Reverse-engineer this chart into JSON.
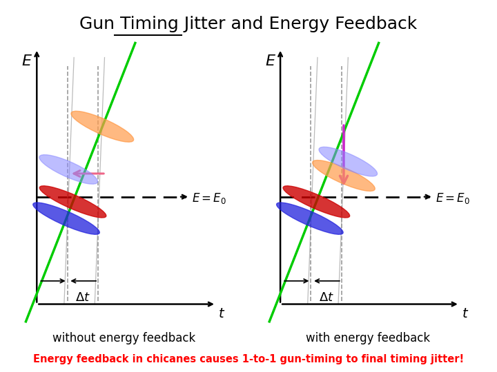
{
  "bg_color": "#ffffff",
  "left_label": "without energy feedback",
  "right_label": "with energy feedback",
  "bottom_text": "Energy feedback in chicanes causes 1-to-1 gun-timing to final timing jitter!",
  "bottom_text_color": "#ff0000",
  "green_color": "#00cc00",
  "blue_color": "#2222dd",
  "light_blue_color": "#8888ff",
  "red_color": "#cc0000",
  "orange_color": "#ff9933",
  "pink_color": "#ffaaaa",
  "magenta_color": "#cc22cc",
  "rose_arrow_color": "#ee6688",
  "gray_line_color": "#aaaaaa"
}
